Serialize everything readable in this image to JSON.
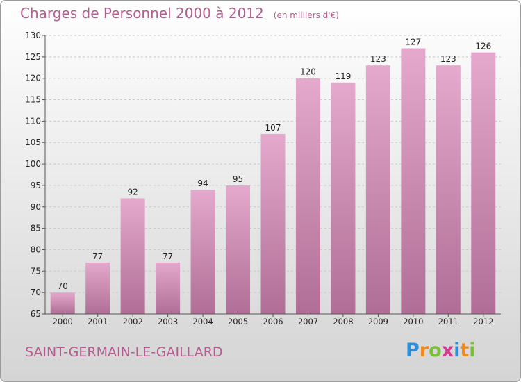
{
  "chart_data": {
    "type": "bar",
    "title": "Charges de Personnel 2000 à 2012",
    "subtitle": "(en milliers d'€)",
    "categories": [
      "2000",
      "2001",
      "2002",
      "2003",
      "2004",
      "2005",
      "2006",
      "2007",
      "2008",
      "2009",
      "2010",
      "2011",
      "2012"
    ],
    "values": [
      70,
      77,
      92,
      77,
      94,
      95,
      107,
      120,
      119,
      123,
      127,
      123,
      126
    ],
    "ylim": [
      65,
      130
    ],
    "yticks": [
      65,
      70,
      75,
      80,
      85,
      90,
      95,
      100,
      105,
      110,
      115,
      120,
      125,
      130
    ],
    "grid": true,
    "xlabel": "",
    "ylabel": "",
    "bar_color_top": "#e4a9cc",
    "bar_color_bottom": "#b06e96"
  },
  "footer": {
    "city": "SAINT-GERMAIN-LE-GAILLARD",
    "logo_letters": [
      "P",
      "r",
      "o",
      "x",
      "i",
      "t",
      "i"
    ],
    "logo_colors": [
      "#2f8fd6",
      "#f08a1c",
      "#7abf3a",
      "#d83a8f",
      "#2f8fd6",
      "#f08a1c",
      "#7abf3a"
    ]
  },
  "colors": {
    "title": "#b55c8f"
  }
}
